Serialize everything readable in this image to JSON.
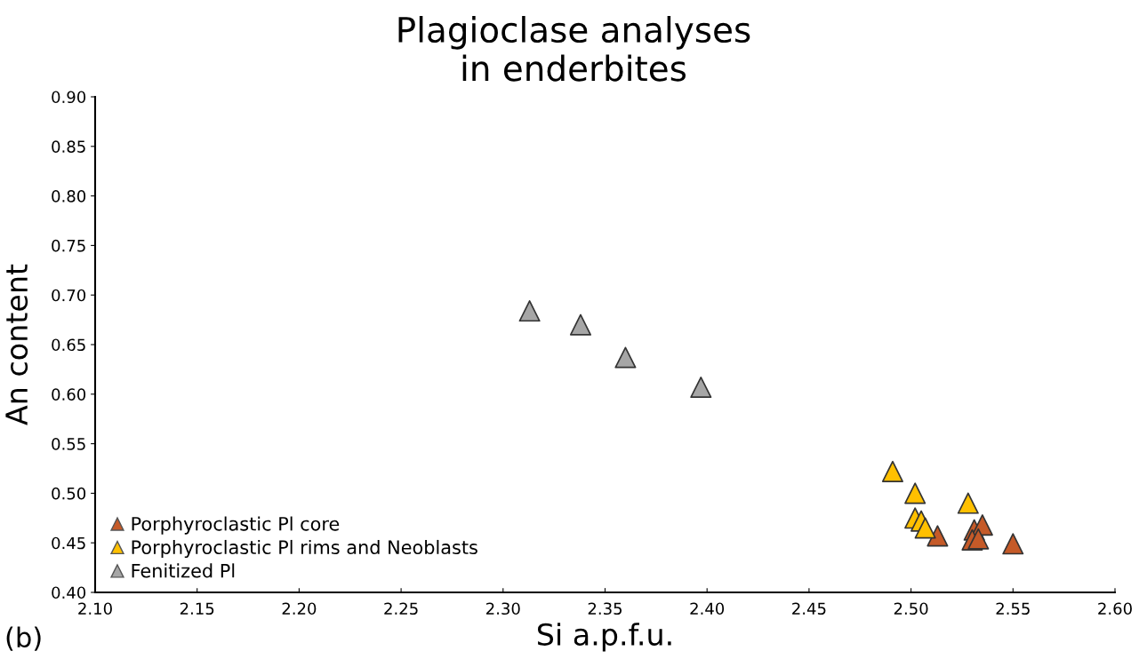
{
  "chart_data": {
    "type": "scatter",
    "title": "Plagioclase analyses\nin enderbites",
    "xlabel": "Si a.p.f.u.",
    "ylabel": "An content",
    "annotations": [
      "(b)"
    ],
    "series": [
      {
        "name": "Porphyroclastic Pl core",
        "color": "#c55a28",
        "x": [
          2.513,
          2.531,
          2.535,
          2.53,
          2.533,
          2.55
        ],
        "values": [
          0.457,
          0.463,
          0.468,
          0.453,
          0.454,
          0.449
        ]
      },
      {
        "name": "Porphyroclastic Pl rims and Neoblasts",
        "color": "#ffc000",
        "x": [
          2.491,
          2.502,
          2.528,
          2.502,
          2.505,
          2.507
        ],
        "values": [
          0.522,
          0.5,
          0.49,
          0.475,
          0.472,
          0.465
        ]
      },
      {
        "name": "Fenitized Pl",
        "color": "#a6a6a6",
        "x": [
          2.313,
          2.338,
          2.36,
          2.397
        ],
        "values": [
          0.684,
          0.67,
          0.637,
          0.607
        ]
      }
    ],
    "xlim": [
      2.1,
      2.6
    ],
    "xticks": [
      {
        "value": 2.1,
        "label": "2.10"
      },
      {
        "value": 2.15,
        "label": "2.15"
      },
      {
        "value": 2.2,
        "label": "2.20"
      },
      {
        "value": 2.25,
        "label": "2.25"
      },
      {
        "value": 2.3,
        "label": "2.30"
      },
      {
        "value": 2.35,
        "label": "2.35"
      },
      {
        "value": 2.4,
        "label": "2.40"
      },
      {
        "value": 2.45,
        "label": "2.45"
      },
      {
        "value": 2.5,
        "label": "2.50"
      },
      {
        "value": 2.55,
        "label": "2.55"
      },
      {
        "value": 2.6,
        "label": "2.60"
      }
    ],
    "ylim": [
      0.4,
      0.9
    ],
    "yticks": [
      {
        "value": 0.4,
        "label": "0.40"
      },
      {
        "value": 0.45,
        "label": "0.45"
      },
      {
        "value": 0.5,
        "label": "0.50"
      },
      {
        "value": 0.55,
        "label": "0.55"
      },
      {
        "value": 0.6,
        "label": "0.60"
      },
      {
        "value": 0.65,
        "label": "0.65"
      },
      {
        "value": 0.7,
        "label": "0.70"
      },
      {
        "value": 0.75,
        "label": "0.75"
      },
      {
        "value": 0.8,
        "label": "0.80"
      },
      {
        "value": 0.85,
        "label": "0.85"
      },
      {
        "value": 0.9,
        "label": "0.90"
      }
    ],
    "grid": false,
    "legend": "bottom left",
    "marker": "triangle"
  }
}
